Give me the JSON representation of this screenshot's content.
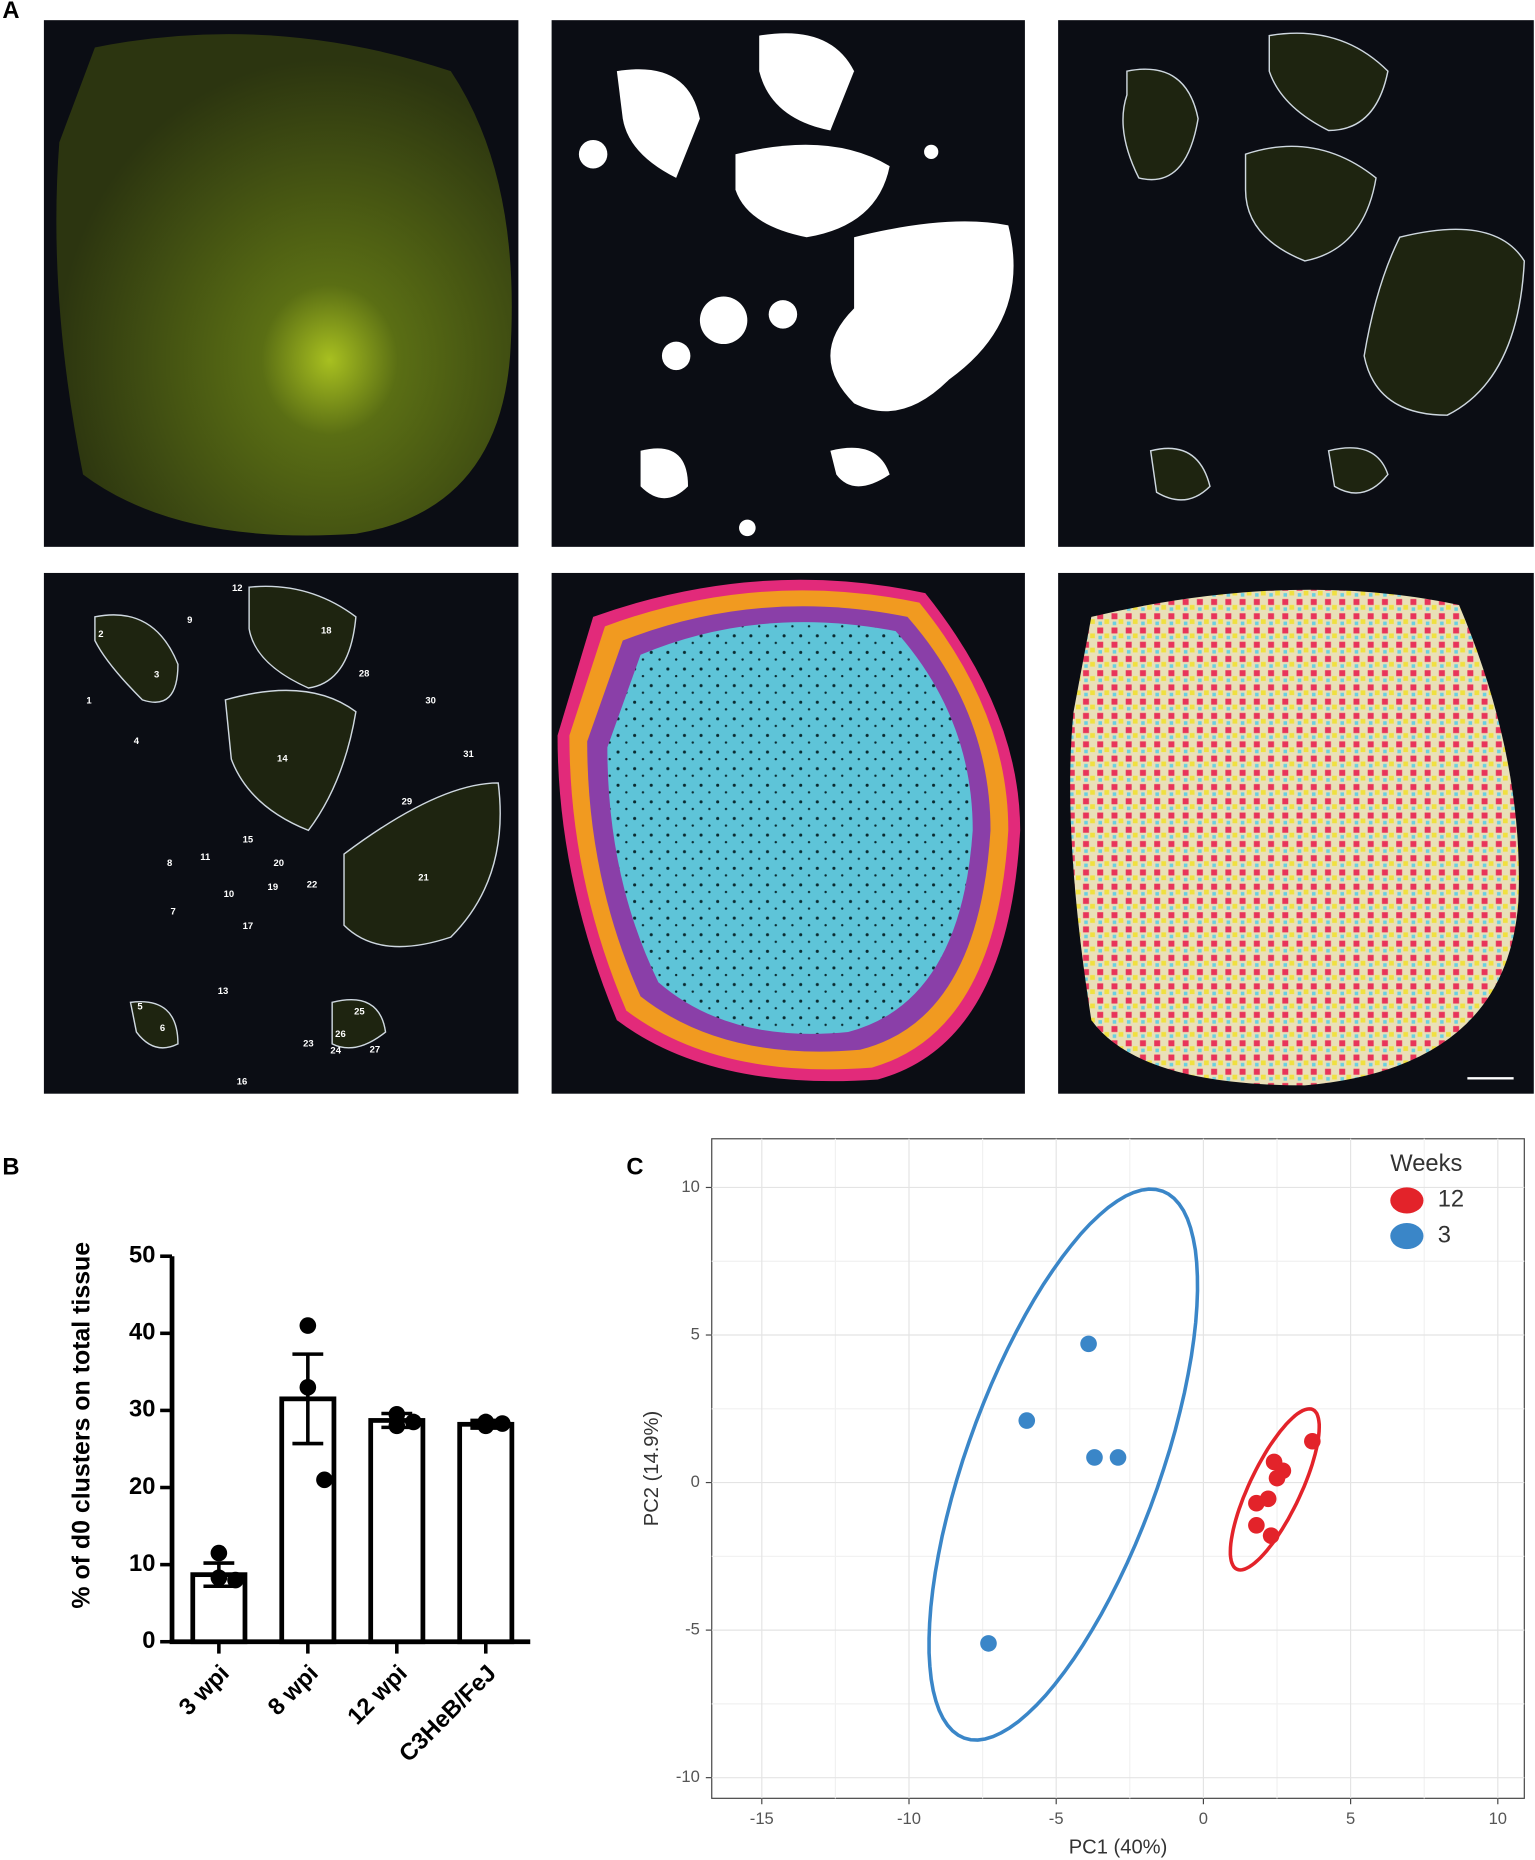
{
  "panel_labels": [
    "A",
    "B",
    "C"
  ],
  "cluster_labels": [
    "1",
    "2",
    "3",
    "4",
    "5",
    "6",
    "7",
    "8",
    "9",
    "10",
    "11",
    "12",
    "13",
    "14",
    "15",
    "16",
    "17",
    "18",
    "19",
    "20",
    "21",
    "22",
    "23",
    "24",
    "25",
    "26",
    "27",
    "28",
    "29",
    "30",
    "31"
  ],
  "chart_data": [
    {
      "type": "bar",
      "ylabel": "% of d0 clusters on total tissue",
      "categories": [
        "3 wpi",
        "8 wpi",
        "12 wpi",
        "C3HeB/FeJ"
      ],
      "values": [
        8.7,
        31.5,
        28.7,
        28.2
      ],
      "errors": [
        1.5,
        5.8,
        0.9,
        0.5
      ],
      "points": [
        [
          11.5,
          8.3,
          8.0
        ],
        [
          41,
          33,
          21
        ],
        [
          29.5,
          28.0,
          28.5
        ],
        [
          28.5,
          28.0,
          28.3
        ]
      ],
      "color": "#000000",
      "ylim": [
        0,
        50
      ],
      "yticks": [
        0,
        10,
        20,
        30,
        40,
        50
      ]
    },
    {
      "type": "scatter",
      "xlabel": "PC1 (40%)",
      "ylabel": "PC2 (14.9%)",
      "legend_title": "Weeks",
      "series": [
        {
          "name": "12",
          "color": "#e3232a",
          "x": [
            3.7,
            2.4,
            2.7,
            2.5,
            2.2,
            1.8,
            1.8,
            2.3
          ],
          "y": [
            1.4,
            0.7,
            0.4,
            0.15,
            -0.55,
            -0.7,
            -1.45,
            -1.8
          ]
        },
        {
          "name": "3",
          "color": "#3a86c8",
          "x": [
            -3.9,
            -6.0,
            -3.7,
            -2.9,
            -7.3
          ],
          "y": [
            4.7,
            2.1,
            0.85,
            0.85,
            -5.45
          ]
        }
      ],
      "xlim": [
        -16.7,
        10.9
      ],
      "ylim": [
        -10.7,
        11.65
      ],
      "xticks": [
        -15,
        -10,
        -5,
        0,
        5,
        10
      ],
      "yticks": [
        -10,
        -5,
        0,
        5,
        10
      ],
      "grid": true,
      "legend": "top-right"
    }
  ]
}
